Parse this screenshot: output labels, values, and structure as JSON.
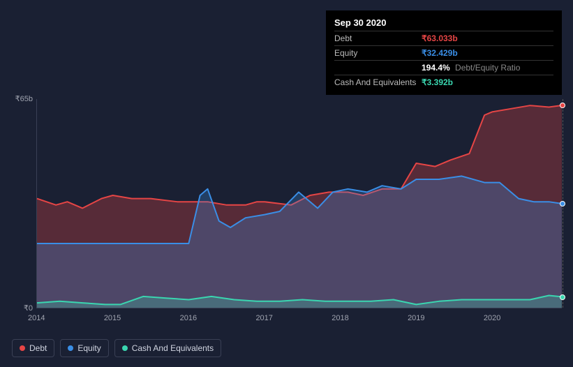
{
  "tooltip": {
    "date": "Sep 30 2020",
    "rows": [
      {
        "label": "Debt",
        "value": "₹63.033b",
        "color": "#e64545"
      },
      {
        "label": "Equity",
        "value": "₹32.429b",
        "color": "#3a8ee6"
      },
      {
        "label": "",
        "value": "194.4%",
        "sub": "Debt/Equity Ratio",
        "color": "#ffffff"
      },
      {
        "label": "Cash And Equivalents",
        "value": "₹3.392b",
        "color": "#3ad6b0"
      }
    ]
  },
  "chart": {
    "type": "area",
    "background_color": "#1a2033",
    "axis_color": "#3a4055",
    "text_color": "#a0a4b0",
    "label_fontsize": 11,
    "ylim": [
      0,
      65
    ],
    "ylabels": [
      {
        "v": 65,
        "text": "₹65b"
      },
      {
        "v": 0,
        "text": "₹0"
      }
    ],
    "x_years": [
      2014,
      2015,
      2016,
      2017,
      2018,
      2019,
      2020,
      2020.92
    ],
    "xlabels": [
      2014,
      2015,
      2016,
      2017,
      2018,
      2019,
      2020
    ],
    "crosshair_x": 2020.92,
    "series": [
      {
        "name": "Debt",
        "color": "#e64545",
        "fill": "rgba(230,69,69,0.30)",
        "line_width": 2,
        "end_marker_y": 63.033,
        "points": [
          [
            2014.0,
            34
          ],
          [
            2014.25,
            32
          ],
          [
            2014.4,
            33
          ],
          [
            2014.6,
            31
          ],
          [
            2014.85,
            34
          ],
          [
            2015.0,
            35
          ],
          [
            2015.25,
            34
          ],
          [
            2015.5,
            34
          ],
          [
            2015.85,
            33
          ],
          [
            2016.0,
            33
          ],
          [
            2016.25,
            33
          ],
          [
            2016.5,
            32
          ],
          [
            2016.75,
            32
          ],
          [
            2016.9,
            33
          ],
          [
            2017.0,
            33
          ],
          [
            2017.35,
            32
          ],
          [
            2017.6,
            35
          ],
          [
            2017.85,
            36
          ],
          [
            2018.1,
            36
          ],
          [
            2018.3,
            35
          ],
          [
            2018.55,
            37
          ],
          [
            2018.8,
            37
          ],
          [
            2019.0,
            45
          ],
          [
            2019.25,
            44
          ],
          [
            2019.45,
            46
          ],
          [
            2019.7,
            48
          ],
          [
            2019.9,
            60
          ],
          [
            2020.0,
            61
          ],
          [
            2020.25,
            62
          ],
          [
            2020.5,
            63
          ],
          [
            2020.75,
            62.5
          ],
          [
            2020.92,
            63.033
          ]
        ]
      },
      {
        "name": "Equity",
        "color": "#3a8ee6",
        "fill": "rgba(58,142,230,0.28)",
        "line_width": 2,
        "end_marker_y": 32.429,
        "points": [
          [
            2014.0,
            20
          ],
          [
            2014.25,
            20
          ],
          [
            2014.5,
            20
          ],
          [
            2014.75,
            20
          ],
          [
            2015.0,
            20
          ],
          [
            2015.25,
            20
          ],
          [
            2015.5,
            20
          ],
          [
            2015.75,
            20
          ],
          [
            2016.0,
            20
          ],
          [
            2016.15,
            35
          ],
          [
            2016.25,
            37
          ],
          [
            2016.4,
            27
          ],
          [
            2016.55,
            25
          ],
          [
            2016.75,
            28
          ],
          [
            2017.0,
            29
          ],
          [
            2017.2,
            30
          ],
          [
            2017.45,
            36
          ],
          [
            2017.7,
            31
          ],
          [
            2017.9,
            36
          ],
          [
            2018.1,
            37
          ],
          [
            2018.35,
            36
          ],
          [
            2018.55,
            38
          ],
          [
            2018.8,
            37
          ],
          [
            2019.0,
            40
          ],
          [
            2019.3,
            40
          ],
          [
            2019.6,
            41
          ],
          [
            2019.9,
            39
          ],
          [
            2020.1,
            39
          ],
          [
            2020.35,
            34
          ],
          [
            2020.55,
            33
          ],
          [
            2020.75,
            33
          ],
          [
            2020.92,
            32.429
          ]
        ]
      },
      {
        "name": "Cash And Equivalents",
        "color": "#3ad6b0",
        "fill": "rgba(58,214,176,0.25)",
        "line_width": 2,
        "end_marker_y": 3.392,
        "points": [
          [
            2014.0,
            1.5
          ],
          [
            2014.3,
            2.0
          ],
          [
            2014.6,
            1.5
          ],
          [
            2014.9,
            1.0
          ],
          [
            2015.1,
            1.0
          ],
          [
            2015.4,
            3.5
          ],
          [
            2015.7,
            3.0
          ],
          [
            2016.0,
            2.5
          ],
          [
            2016.3,
            3.5
          ],
          [
            2016.6,
            2.5
          ],
          [
            2016.9,
            2.0
          ],
          [
            2017.2,
            2.0
          ],
          [
            2017.5,
            2.5
          ],
          [
            2017.8,
            2.0
          ],
          [
            2018.1,
            2.0
          ],
          [
            2018.4,
            2.0
          ],
          [
            2018.7,
            2.5
          ],
          [
            2019.0,
            1.0
          ],
          [
            2019.3,
            2.0
          ],
          [
            2019.6,
            2.5
          ],
          [
            2019.9,
            2.5
          ],
          [
            2020.2,
            2.5
          ],
          [
            2020.5,
            2.5
          ],
          [
            2020.75,
            3.8
          ],
          [
            2020.92,
            3.392
          ]
        ]
      }
    ]
  },
  "legend": [
    {
      "label": "Debt",
      "color": "#e64545"
    },
    {
      "label": "Equity",
      "color": "#3a8ee6"
    },
    {
      "label": "Cash And Equivalents",
      "color": "#3ad6b0"
    }
  ]
}
